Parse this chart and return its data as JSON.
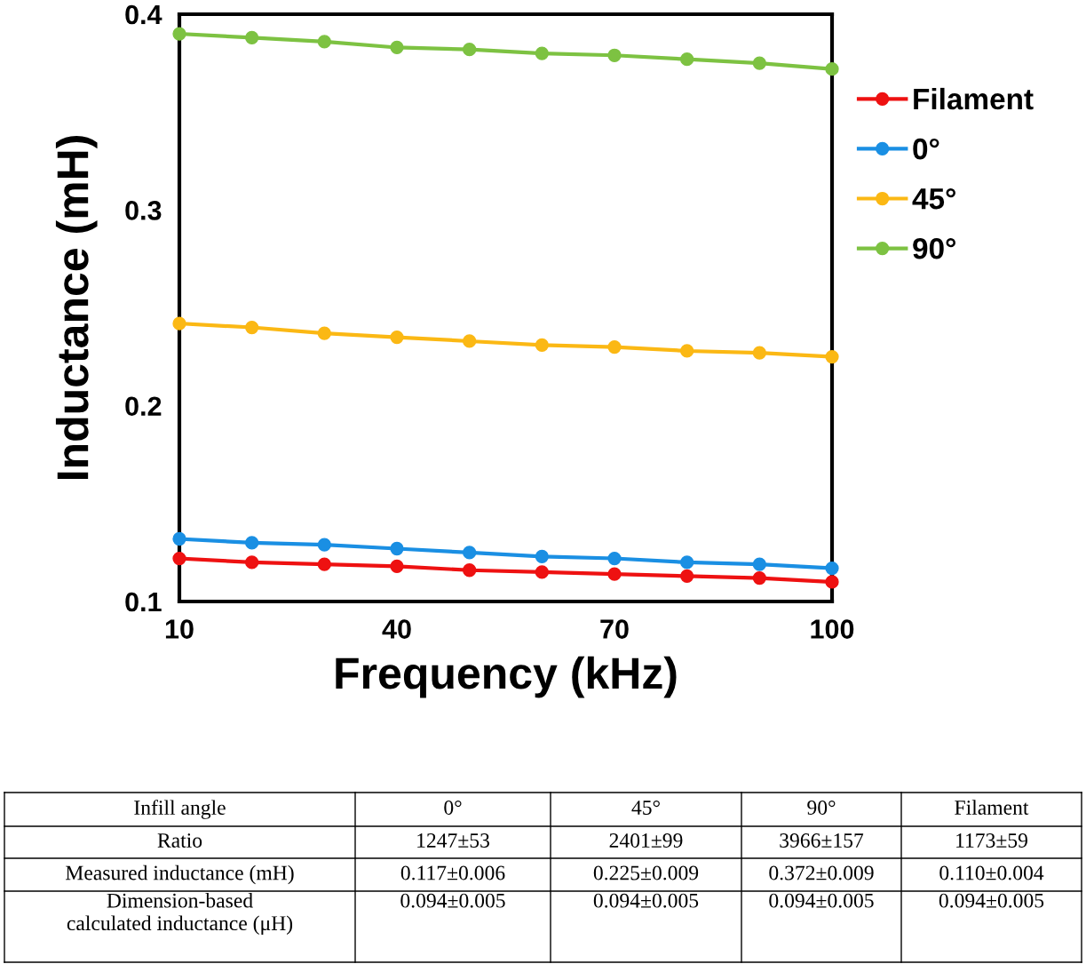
{
  "chart_data": {
    "type": "line",
    "xlabel": "Frequency (kHz)",
    "ylabel": "Inductance (mH)",
    "x": [
      10,
      20,
      30,
      40,
      50,
      60,
      70,
      80,
      90,
      100
    ],
    "series": [
      {
        "name": "Filament",
        "color": "#ee1111",
        "values": [
          0.122,
          0.12,
          0.119,
          0.118,
          0.116,
          0.115,
          0.114,
          0.113,
          0.112,
          0.11
        ]
      },
      {
        "name": "0°",
        "color": "#1a8fe3",
        "values": [
          0.132,
          0.13,
          0.129,
          0.127,
          0.125,
          0.123,
          0.122,
          0.12,
          0.119,
          0.117
        ]
      },
      {
        "name": "45°",
        "color": "#fbb814",
        "values": [
          0.242,
          0.24,
          0.237,
          0.235,
          0.233,
          0.231,
          0.23,
          0.228,
          0.227,
          0.225
        ]
      },
      {
        "name": "90°",
        "color": "#7dc242",
        "values": [
          0.39,
          0.388,
          0.386,
          0.383,
          0.382,
          0.38,
          0.379,
          0.377,
          0.375,
          0.372
        ]
      }
    ],
    "xlim": [
      10,
      100
    ],
    "xticks": [
      10,
      40,
      70,
      100
    ],
    "ylim": [
      0.1,
      0.4
    ],
    "yticks": [
      {
        "value": 0.1,
        "label": "0.1"
      },
      {
        "value": 0.2,
        "label": "0.2"
      },
      {
        "value": 0.3,
        "label": "0.3"
      },
      {
        "value": 0.4,
        "label": "0.4"
      }
    ],
    "grid": false,
    "legend": "right",
    "marker": "circle",
    "line_style": "solid",
    "annotations": [
      "Infill angle",
      "0°",
      "45°",
      "90°",
      "Filament",
      "Ratio",
      "1247±53",
      "2401±99",
      "3966±157",
      "1173±59",
      "Measured inductance (mH)",
      "0.117±0.006",
      "0.225±0.009",
      "0.372±0.009",
      "0.110±0.004",
      "Dimension-based\ncalculated inductance (μH)",
      "0.094±0.005",
      "0.094±0.005",
      "0.094±0.005",
      "0.094±0.005"
    ]
  }
}
